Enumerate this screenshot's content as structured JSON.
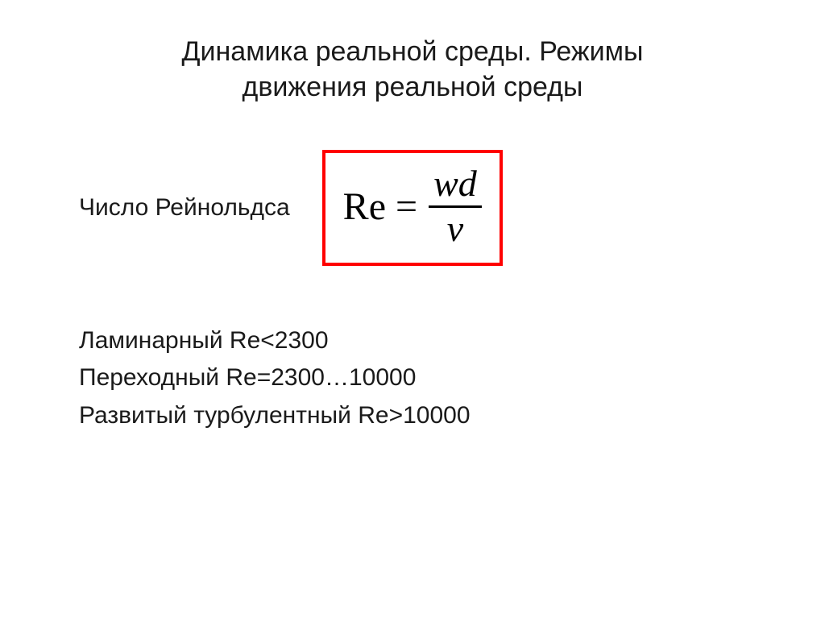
{
  "title": {
    "line1": "Динамика реальной среды. Режимы",
    "line2": "движения реальной среды"
  },
  "reynolds": {
    "label": "Число Рейнольдса",
    "formula": {
      "lhs": "Re =",
      "numerator": "wd",
      "denominator": "ν"
    }
  },
  "regimes": {
    "laminar": "Ламинарный Re<2300",
    "transitional": "Переходный Re=2300…10000",
    "turbulent": "Развитый турбулентный Re>10000"
  },
  "style": {
    "background_color": "#ffffff",
    "text_color": "#000000",
    "box_border_color": "#ff0000",
    "box_border_width": 4,
    "title_fontsize": 34,
    "body_fontsize": 30,
    "formula_fontsize": 48,
    "formula_font_family": "Times New Roman",
    "body_font_family": "Arial"
  }
}
